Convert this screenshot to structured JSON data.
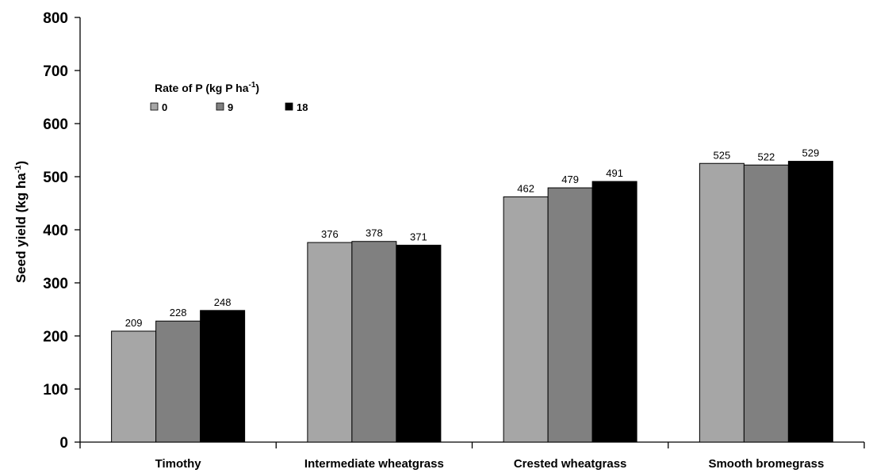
{
  "chart_data": {
    "type": "bar",
    "categories": [
      "Timothy",
      "Intermediate wheatgrass",
      "Crested wheatgrass",
      "Smooth bromegrass"
    ],
    "series": [
      {
        "name": "0",
        "values": [
          209,
          376,
          462,
          525
        ],
        "color": "#a6a6a6"
      },
      {
        "name": "9",
        "values": [
          228,
          378,
          479,
          522
        ],
        "color": "#808080"
      },
      {
        "name": "18",
        "values": [
          248,
          371,
          491,
          529
        ],
        "color": "#000000"
      }
    ],
    "ylabel": "Seed yield (kg ha",
    "ylabel_sup": "-1",
    "ylabel_end": ")",
    "ylim": [
      0,
      800
    ],
    "yticks": [
      "0",
      "100",
      "200",
      "300",
      "400",
      "500",
      "600",
      "700",
      "800"
    ],
    "legend": {
      "title": "Rate of P (kg P ha",
      "title_sup": "-1",
      "title_end": ")",
      "placement": "top-left"
    },
    "data_labels": true,
    "grid": false
  }
}
